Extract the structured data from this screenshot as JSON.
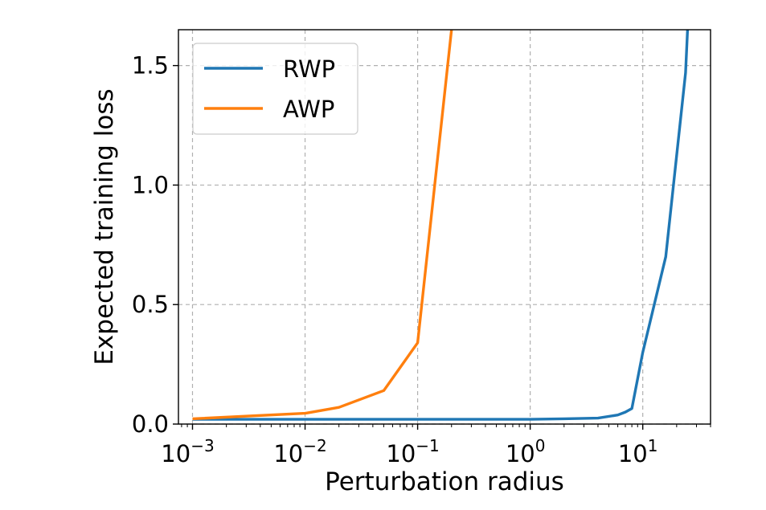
{
  "chart_data": {
    "type": "line",
    "xlabel": "Perturbation radius",
    "ylabel": "Expected training loss",
    "xscale": "log",
    "xlim": [
      0.00075,
      40
    ],
    "ylim": [
      0.0,
      1.65
    ],
    "grid": true,
    "legend_position": "top-left",
    "x_ticks": [
      {
        "value": 0.001,
        "base": "10",
        "exp": "−3"
      },
      {
        "value": 0.01,
        "base": "10",
        "exp": "−2"
      },
      {
        "value": 0.1,
        "base": "10",
        "exp": "−1"
      },
      {
        "value": 1,
        "base": "10",
        "exp": "0"
      },
      {
        "value": 10,
        "base": "10",
        "exp": "1"
      }
    ],
    "y_ticks": [
      {
        "value": 0.0,
        "label": "0.0"
      },
      {
        "value": 0.5,
        "label": "0.5"
      },
      {
        "value": 1.0,
        "label": "1.0"
      },
      {
        "value": 1.5,
        "label": "1.5"
      }
    ],
    "series": [
      {
        "name": "RWP",
        "color": "#1f77b4",
        "x": [
          0.001,
          0.01,
          0.1,
          1,
          2,
          4,
          6,
          7,
          8,
          10,
          16,
          24,
          25
        ],
        "y": [
          0.02,
          0.02,
          0.02,
          0.02,
          0.022,
          0.025,
          0.038,
          0.05,
          0.065,
          0.3,
          0.7,
          1.47,
          1.65
        ]
      },
      {
        "name": "AWP",
        "color": "#ff7f0e",
        "x": [
          0.001,
          0.01,
          0.02,
          0.05,
          0.1,
          0.2
        ],
        "y": [
          0.022,
          0.045,
          0.07,
          0.14,
          0.34,
          1.65
        ]
      }
    ]
  }
}
